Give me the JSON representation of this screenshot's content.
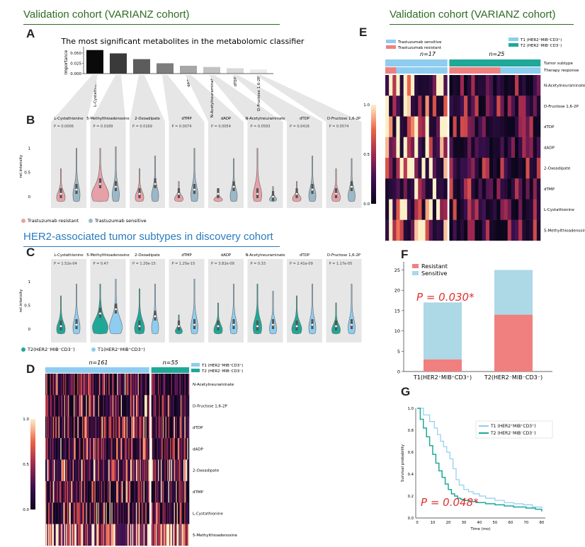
{
  "sections": {
    "validation": "Validation cohort (VARIANZ cohort)",
    "discovery": "HER2-associated tumor subtypes in discovery cohort"
  },
  "panel_labels": {
    "A": "A",
    "B": "B",
    "C": "C",
    "D": "D",
    "E": "E",
    "F": "F",
    "G": "G"
  },
  "colors": {
    "green": "#2f6b24",
    "blue": "#2a7bc0",
    "resistant_pink": "#e8a0a8",
    "sensitive_blue": "#9ab8c8",
    "t1_blue": "#8ecdf0",
    "t2_teal": "#1fa898",
    "bar_resistant": "#f08080",
    "bar_sensitive": "#add8e6",
    "grey_panel": "#e6e6e6"
  },
  "chart_data": [
    {
      "id": "A",
      "type": "bar",
      "title": "The most significant metabolites in the metabolomic classifier",
      "ylabel": "Importance",
      "ylim": [
        0,
        0.06
      ],
      "yticks": [
        "0.000",
        "0.025",
        "0.050"
      ],
      "categories": [
        "L-Cystathionine",
        "5-Methylthioadenosine",
        "2-Oxoadipate",
        "dTMP",
        "dADP",
        "N-Acetylneuraminate",
        "dTDP",
        "D-Fructose 1,6-2P"
      ],
      "values": [
        0.057,
        0.049,
        0.035,
        0.025,
        0.019,
        0.016,
        0.013,
        0.01
      ],
      "bar_shades": [
        "#0a0a0a",
        "#3a3a3a",
        "#5c5c5c",
        "#7d7d7d",
        "#a6a6a6",
        "#c2c2c2",
        "#d9d9d9",
        "#ebebeb"
      ]
    },
    {
      "id": "B",
      "type": "violin",
      "ylabel": "rel.intensity",
      "yticks": [
        "0",
        "0.5",
        "1"
      ],
      "panels": [
        {
          "name": "L-Cystathionine",
          "p": "P = 0.0006"
        },
        {
          "name": "5-Methylthioadenosine",
          "p": "P = 0.0189"
        },
        {
          "name": "2-Oxoadipate",
          "p": "P = 0.0169"
        },
        {
          "name": "dTMP",
          "p": "P = 0.0074"
        },
        {
          "name": "dADP",
          "p": "P = 0.0054"
        },
        {
          "name": "N-Acetylneuraminate",
          "p": "P = 0.0593"
        },
        {
          "name": "dTDP",
          "p": "P = 0.0416"
        },
        {
          "name": "D-Fructose 1,6-2P",
          "p": "P = 0.0574"
        }
      ],
      "series": [
        {
          "name": "Trastuzumab resistant"
        },
        {
          "name": "Trastuzumab sensitive"
        }
      ]
    },
    {
      "id": "C",
      "type": "violin",
      "ylabel": "rel.intensity",
      "yticks": [
        "0",
        "0.5",
        "1"
      ],
      "panels": [
        {
          "name": "L-Cystathionine",
          "p": "P = 1.52e-04"
        },
        {
          "name": "5-Methylthioadenosine",
          "p": "P = 0.47"
        },
        {
          "name": "2-Oxoadipate",
          "p": "P = 1.20e-15"
        },
        {
          "name": "dTMP",
          "p": "P = 1.25e-15"
        },
        {
          "name": "dADP",
          "p": "P = 3.82e-09"
        },
        {
          "name": "N-Acetylneuraminate",
          "p": "P = 0.33"
        },
        {
          "name": "dTDP",
          "p": "P = 2.41e-09"
        },
        {
          "name": "D-Fructose 1,6-2P",
          "p": "P = 1.17e-05"
        }
      ],
      "series": [
        {
          "name": "T2(HER2⁻MIB⁻CD3⁻)"
        },
        {
          "name": "T1(HER2⁺MIB⁺CD3⁺)"
        }
      ]
    },
    {
      "id": "D",
      "type": "heatmap",
      "groups": [
        {
          "label": "n=161"
        },
        {
          "label": "n=55"
        }
      ],
      "legend": [
        "T1 (HER2⁺MIB⁺CD3⁺)",
        "T2 (HER2⁻MIB⁻CD3⁻)"
      ],
      "rows": [
        "N-Acetylneuraminate",
        "D-Fructose 1,6-2P",
        "dTDP",
        "dADP",
        "2-Oxoadipate",
        "dTMP",
        "L-Cystathionine",
        "5-Methylthioadenosine"
      ],
      "colorbar_ticks": [
        "0.0",
        "0.5",
        "1.0"
      ]
    },
    {
      "id": "E",
      "type": "heatmap",
      "groups": [
        {
          "label": "n=17"
        },
        {
          "label": "n=25"
        }
      ],
      "legend_left": [
        "Trastuzumab sensitive",
        "Trastuzumab resistant"
      ],
      "legend_right": [
        "T1 (HER2⁺MIB⁺CD3⁺)",
        "T2 (HER2⁻MIB⁻CD3⁻)"
      ],
      "annotation_rows": [
        "Tumor subtype",
        "Therapy response"
      ],
      "rows": [
        "N-Acetylneuraminate",
        "D-Fructose 1,6-2P",
        "dTDP",
        "dADP",
        "2-Oxoadipate",
        "dTMP",
        "L-Cystathionine",
        "5-Methylthioadenosine"
      ],
      "colorbar_ticks": [
        "0.0",
        "0.5",
        "1.0"
      ]
    },
    {
      "id": "F",
      "type": "bar",
      "categories": [
        "T1(HER2⁺MIB⁺CD3⁺)",
        "T2(HER2⁻MIB⁻CD3⁻)"
      ],
      "series": [
        {
          "name": "Resistant",
          "values": [
            3,
            14
          ]
        },
        {
          "name": "Sensitive",
          "values": [
            14,
            11
          ]
        }
      ],
      "ylim": [
        0,
        27
      ],
      "yticks": [
        "0",
        "5",
        "10",
        "15",
        "20",
        "25"
      ],
      "annotation": "P = 0.030*"
    },
    {
      "id": "G",
      "type": "line",
      "xlabel": "Time (mo)",
      "ylabel": "Survival probability",
      "xlim": [
        0,
        82
      ],
      "ylim": [
        0,
        1
      ],
      "xticks": [
        "0",
        "10",
        "20",
        "30",
        "40",
        "50",
        "60",
        "70",
        "80"
      ],
      "yticks": [
        "0.0",
        "0.2",
        "0.4",
        "0.6",
        "0.8",
        "1.0"
      ],
      "series": [
        {
          "name": "T1 (HER2⁺MIB⁺CD3⁺)",
          "x": [
            0,
            4,
            8,
            11,
            13,
            15,
            17,
            19,
            21,
            23,
            25,
            27,
            30,
            33,
            36,
            40,
            44,
            50,
            56,
            62,
            68,
            74,
            80
          ],
          "y": [
            1.0,
            0.94,
            0.88,
            0.82,
            0.76,
            0.7,
            0.65,
            0.6,
            0.54,
            0.45,
            0.35,
            0.3,
            0.26,
            0.24,
            0.22,
            0.2,
            0.18,
            0.16,
            0.14,
            0.13,
            0.12,
            0.1,
            0.09
          ]
        },
        {
          "name": "T2 (HER2⁻MIB⁻CD3⁻)",
          "x": [
            0,
            2,
            4,
            6,
            8,
            10,
            12,
            14,
            16,
            18,
            20,
            22,
            24,
            26,
            28,
            30,
            34,
            38,
            44,
            50,
            56,
            62,
            70,
            76,
            80
          ],
          "y": [
            1.0,
            0.9,
            0.82,
            0.74,
            0.66,
            0.58,
            0.5,
            0.43,
            0.37,
            0.31,
            0.26,
            0.22,
            0.2,
            0.18,
            0.17,
            0.16,
            0.15,
            0.14,
            0.13,
            0.12,
            0.11,
            0.1,
            0.09,
            0.08,
            0.06
          ]
        }
      ],
      "annotation": "P = 0.048*"
    }
  ]
}
